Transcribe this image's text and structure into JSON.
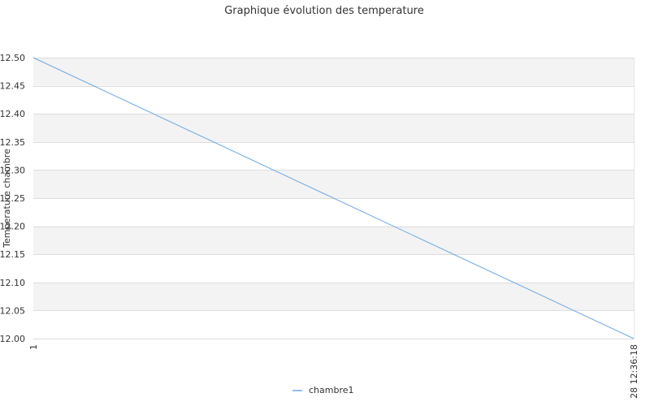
{
  "chart_data": {
    "type": "line",
    "title": "Graphique évolution des temperature",
    "ylabel": "Temperature chambre",
    "xlabel": "",
    "x_tick_labels": [
      "1",
      "28 12:36:18"
    ],
    "ylim": [
      12.0,
      12.5
    ],
    "y_ticks": [
      12.0,
      12.05,
      12.1,
      12.15,
      12.2,
      12.25,
      12.3,
      12.35,
      12.4,
      12.45,
      12.5
    ],
    "y_tick_labels": [
      "12.00",
      "12.05",
      "12.10",
      "12.15",
      "12.20",
      "12.25",
      "12.30",
      "12.35",
      "12.40",
      "12.45",
      "12.50"
    ],
    "grid": true,
    "banded_background": true,
    "legend_position": "bottom-center",
    "series": [
      {
        "name": "chambre1",
        "color": "#6aa9e9",
        "values": [
          12.5,
          12.0
        ]
      }
    ]
  }
}
